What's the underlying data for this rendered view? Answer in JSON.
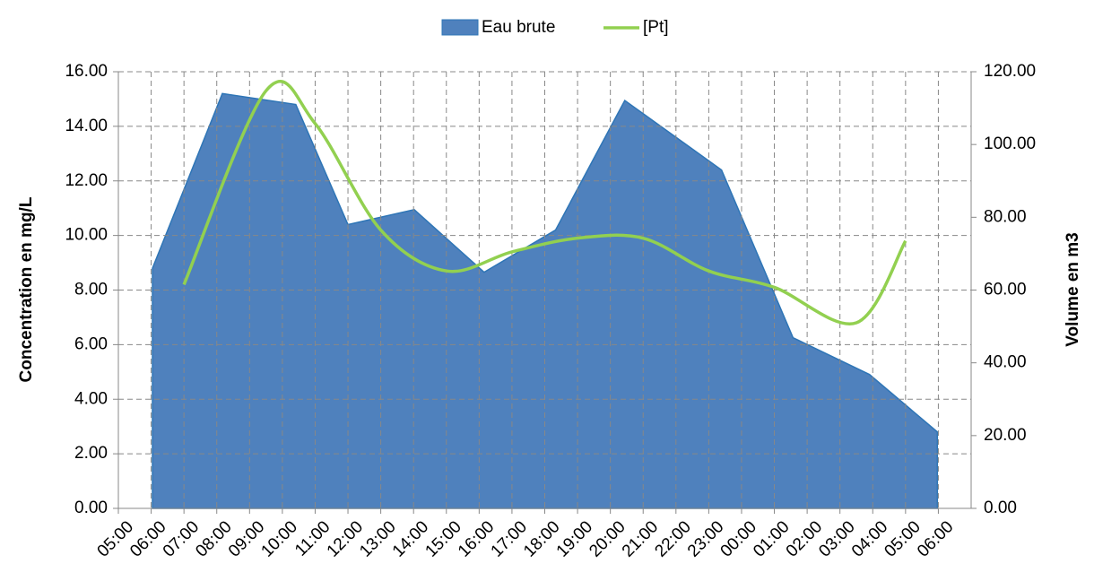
{
  "chart_data": {
    "type": "area-line",
    "legend": "top",
    "y_label": "Concentration en mg/L",
    "y2_label": "Volume en m3",
    "xlim": [
      5,
      31
    ],
    "xticks": [
      {
        "value": 5,
        "label": "05:00"
      },
      {
        "value": 6,
        "label": "06:00"
      },
      {
        "value": 7,
        "label": "07:00"
      },
      {
        "value": 8,
        "label": "08:00"
      },
      {
        "value": 9,
        "label": "09:00"
      },
      {
        "value": 10,
        "label": "10:00"
      },
      {
        "value": 11,
        "label": "11:00"
      },
      {
        "value": 12,
        "label": "12:00"
      },
      {
        "value": 13,
        "label": "13:00"
      },
      {
        "value": 14,
        "label": "14:00"
      },
      {
        "value": 15,
        "label": "15:00"
      },
      {
        "value": 16,
        "label": "16:00"
      },
      {
        "value": 17,
        "label": "17:00"
      },
      {
        "value": 18,
        "label": "18:00"
      },
      {
        "value": 19,
        "label": "19:00"
      },
      {
        "value": 20,
        "label": "20:00"
      },
      {
        "value": 21,
        "label": "21:00"
      },
      {
        "value": 22,
        "label": "22:00"
      },
      {
        "value": 23,
        "label": "23:00"
      },
      {
        "value": 24,
        "label": "00:00"
      },
      {
        "value": 25,
        "label": "01:00"
      },
      {
        "value": 26,
        "label": "02:00"
      },
      {
        "value": 27,
        "label": "03:00"
      },
      {
        "value": 28,
        "label": "04:00"
      },
      {
        "value": 29,
        "label": "05:00"
      },
      {
        "value": 30,
        "label": "06:00"
      }
    ],
    "ylim": [
      0,
      16
    ],
    "yticks": [
      {
        "value": 0,
        "label": "0.00"
      },
      {
        "value": 2,
        "label": "2.00"
      },
      {
        "value": 4,
        "label": "4.00"
      },
      {
        "value": 6,
        "label": "6.00"
      },
      {
        "value": 8,
        "label": "8.00"
      },
      {
        "value": 10,
        "label": "10.00"
      },
      {
        "value": 12,
        "label": "12.00"
      },
      {
        "value": 14,
        "label": "14.00"
      },
      {
        "value": 16,
        "label": "16.00"
      }
    ],
    "y2lim": [
      0,
      120
    ],
    "y2ticks": [
      {
        "value": 0,
        "label": "0.00"
      },
      {
        "value": 20,
        "label": "20.00"
      },
      {
        "value": 40,
        "label": "40.00"
      },
      {
        "value": 60,
        "label": "60.00"
      },
      {
        "value": 80,
        "label": "80.00"
      },
      {
        "value": 100,
        "label": "100.00"
      },
      {
        "value": 120,
        "label": "120.00"
      }
    ],
    "grid": true,
    "series": [
      {
        "name": "Eau brute",
        "kind": "area",
        "axis": "y2",
        "color": "#4f81bd",
        "edge": "#2e75b6",
        "x": [
          6.04,
          8.17,
          10.41,
          12.0,
          14.02,
          16.15,
          18.33,
          20.44,
          23.39,
          25.57,
          27.9,
          29.97
        ],
        "values": [
          66.0,
          114.0,
          111.0,
          78.0,
          82.1,
          64.9,
          76.5,
          112.1,
          93.0,
          46.9,
          36.8,
          21.0
        ]
      },
      {
        "name": "[Pt]",
        "kind": "line",
        "smooth": true,
        "color": "#92d050",
        "x": [
          7,
          9.5,
          11,
          13,
          15,
          17,
          19,
          21,
          23,
          25,
          27.5,
          29
        ],
        "values": [
          8.2,
          15.3,
          14.1,
          10.2,
          8.7,
          9.4,
          9.9,
          9.9,
          8.7,
          8.1,
          6.8,
          9.8
        ]
      }
    ]
  }
}
